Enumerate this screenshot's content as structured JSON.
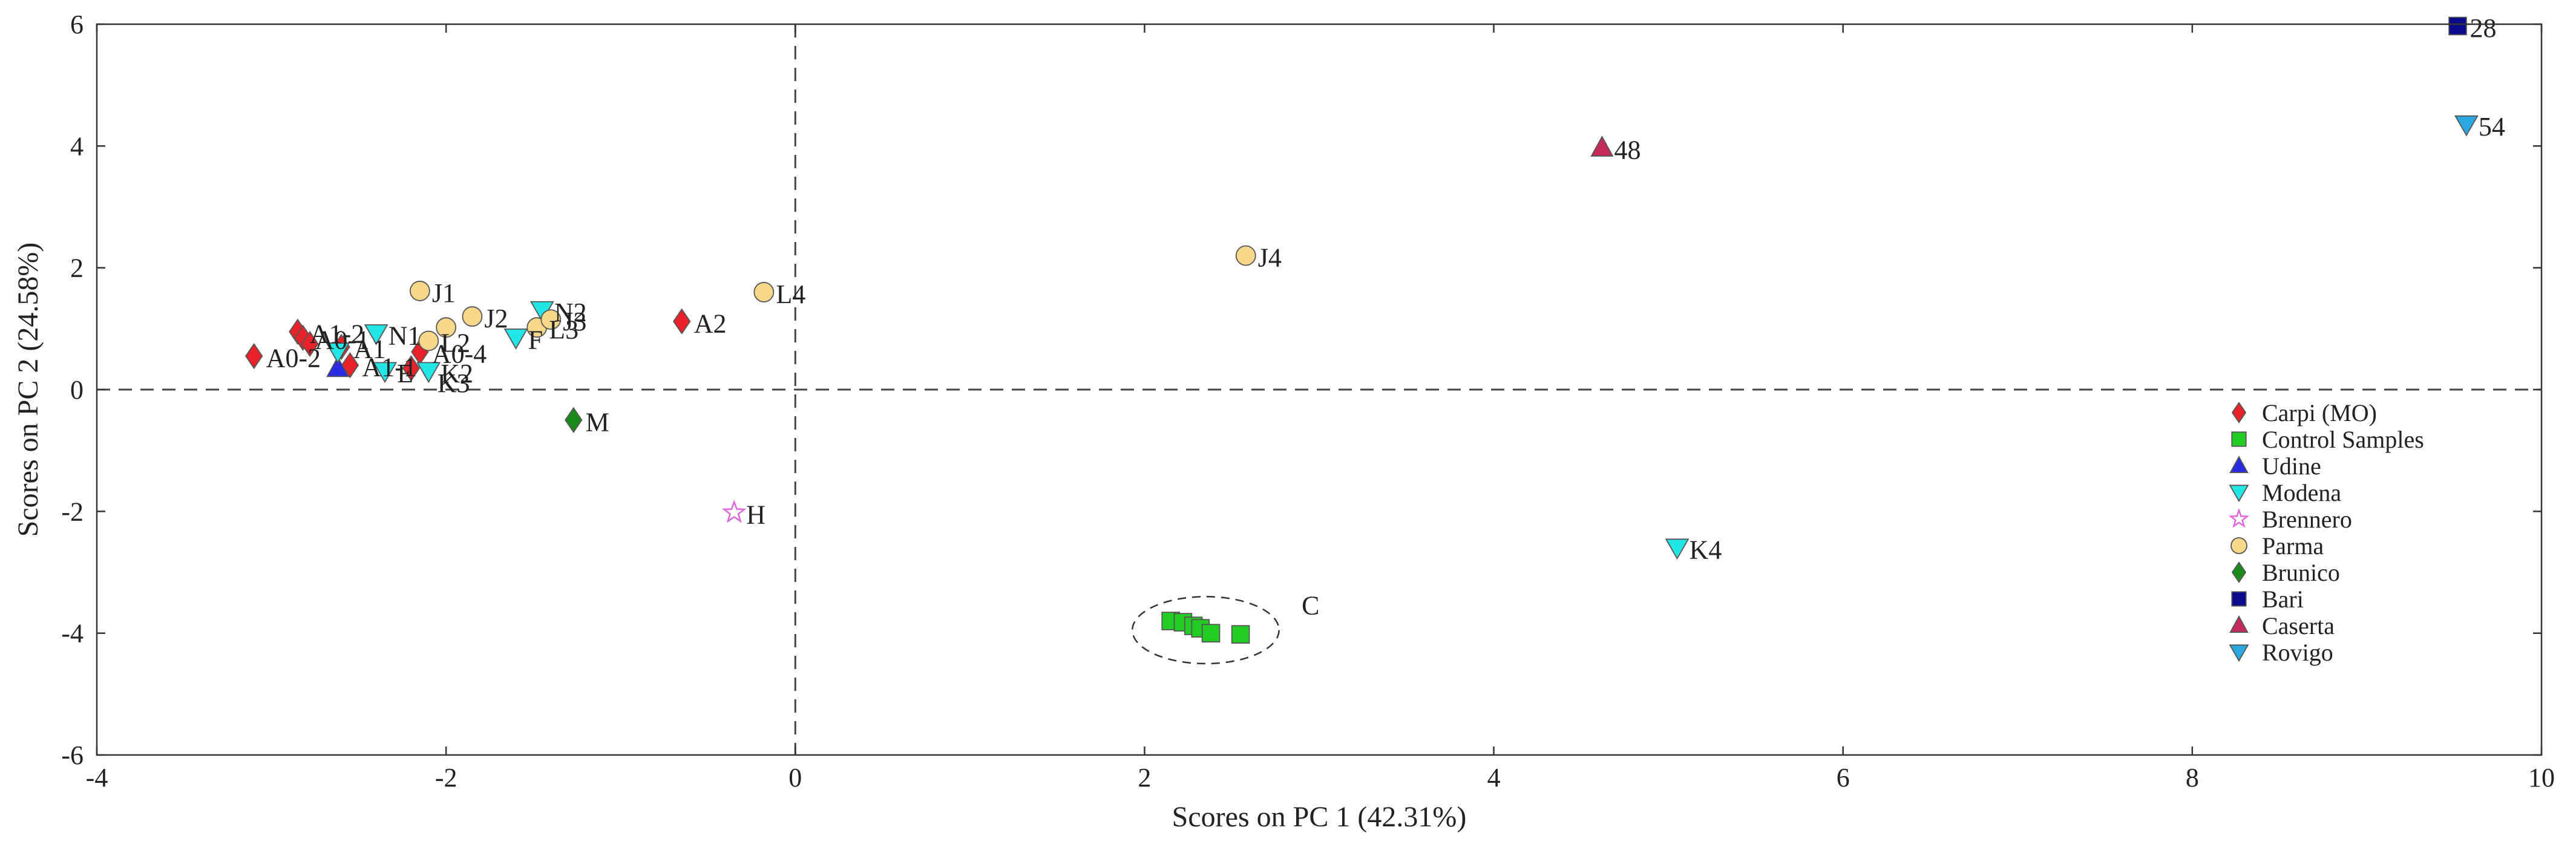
{
  "chart_data": {
    "type": "scatter",
    "title": "",
    "xlabel": "Scores on PC 1 (42.31%)",
    "ylabel": "Scores on PC 2 (24.58%)",
    "xlim": [
      -4,
      10
    ],
    "ylim": [
      -6,
      6
    ],
    "xticks": [
      "-4",
      "-2",
      "0",
      "2",
      "4",
      "6",
      "8",
      "10"
    ],
    "yticks": [
      "-6",
      "-4",
      "-2",
      "0",
      "2",
      "4",
      "6"
    ],
    "grid": false,
    "reference_lines": {
      "x": 0,
      "y": 0,
      "style": "dashed"
    },
    "legend_position": "bottom-right",
    "series": [
      {
        "name": "Carpi (MO)",
        "marker": "diamond",
        "color": "#e8222a",
        "points": [
          {
            "x": -3.1,
            "y": 0.55,
            "label": "A0-2"
          },
          {
            "x": -2.85,
            "y": 0.95,
            "label": "A1-2"
          },
          {
            "x": -2.82,
            "y": 0.85,
            "label": "A0-1"
          },
          {
            "x": -2.78,
            "y": 0.75,
            "label": ""
          },
          {
            "x": -2.6,
            "y": 0.7,
            "label": "A1"
          },
          {
            "x": -2.55,
            "y": 0.4,
            "label": "A1-1"
          },
          {
            "x": -2.2,
            "y": 0.35,
            "label": ""
          },
          {
            "x": -2.15,
            "y": 0.62,
            "label": "A0-4"
          },
          {
            "x": -0.65,
            "y": 1.12,
            "label": "A2"
          }
        ]
      },
      {
        "name": "Control Samples",
        "marker": "square",
        "color": "#22cc22",
        "points": [
          {
            "x": 2.15,
            "y": -3.8,
            "label": ""
          },
          {
            "x": 2.22,
            "y": -3.82,
            "label": ""
          },
          {
            "x": 2.28,
            "y": -3.88,
            "label": ""
          },
          {
            "x": 2.32,
            "y": -3.92,
            "label": ""
          },
          {
            "x": 2.38,
            "y": -4.0,
            "label": ""
          },
          {
            "x": 2.55,
            "y": -4.02,
            "label": ""
          }
        ]
      },
      {
        "name": "Udine",
        "marker": "triangle-up",
        "color": "#2a2ae0",
        "points": [
          {
            "x": -2.62,
            "y": 0.35,
            "label": ""
          }
        ]
      },
      {
        "name": "Modena",
        "marker": "triangle-down",
        "color": "#22e6e6",
        "points": [
          {
            "x": -2.62,
            "y": 0.62,
            "label": ""
          },
          {
            "x": -2.4,
            "y": 0.92,
            "label": "N1"
          },
          {
            "x": -2.35,
            "y": 0.3,
            "label": "E"
          },
          {
            "x": -2.1,
            "y": 0.3,
            "label": "K2"
          },
          {
            "x": -1.6,
            "y": 0.85,
            "label": "F"
          },
          {
            "x": -1.45,
            "y": 1.3,
            "label": "N2"
          },
          {
            "x": 5.05,
            "y": -2.6,
            "label": "K4"
          }
        ]
      },
      {
        "name": "Brennero",
        "marker": "star",
        "color": "#dd66dd",
        "points": [
          {
            "x": -0.35,
            "y": -2.02,
            "label": "H"
          }
        ]
      },
      {
        "name": "Parma",
        "marker": "circle",
        "color": "#f7d88a",
        "points": [
          {
            "x": -2.15,
            "y": 1.62,
            "label": "J1"
          },
          {
            "x": -2.1,
            "y": 0.8,
            "label": "L2"
          },
          {
            "x": -2.0,
            "y": 1.02,
            "label": ""
          },
          {
            "x": -1.85,
            "y": 1.2,
            "label": "J2"
          },
          {
            "x": -1.48,
            "y": 1.02,
            "label": "L3"
          },
          {
            "x": -1.4,
            "y": 1.15,
            "label": "J3"
          },
          {
            "x": -0.18,
            "y": 1.6,
            "label": "L4"
          },
          {
            "x": 2.58,
            "y": 2.2,
            "label": "J4"
          }
        ]
      },
      {
        "name": "Brunico",
        "marker": "diamond",
        "color": "#1a8a1a",
        "points": [
          {
            "x": -1.27,
            "y": -0.5,
            "label": "M"
          }
        ]
      },
      {
        "name": "Bari",
        "marker": "square",
        "color": "#0a0a8c",
        "points": [
          {
            "x": 9.52,
            "y": 5.97,
            "label": "28"
          }
        ]
      },
      {
        "name": "Caserta",
        "marker": "triangle-up",
        "color": "#c42a5a",
        "points": [
          {
            "x": 4.62,
            "y": 3.97,
            "label": "48"
          }
        ]
      },
      {
        "name": "Rovigo",
        "marker": "triangle-down",
        "color": "#2aa8e0",
        "points": [
          {
            "x": 9.57,
            "y": 4.35,
            "label": "54"
          }
        ]
      }
    ],
    "annotations": [
      {
        "text": "K3",
        "x": -2.05,
        "y": 0.1
      },
      {
        "text": "C",
        "x": 2.9,
        "y": -3.55
      }
    ],
    "highlight_ellipse": {
      "cx": 2.35,
      "cy": -3.95,
      "rx": 0.42,
      "ry": 0.55
    }
  }
}
